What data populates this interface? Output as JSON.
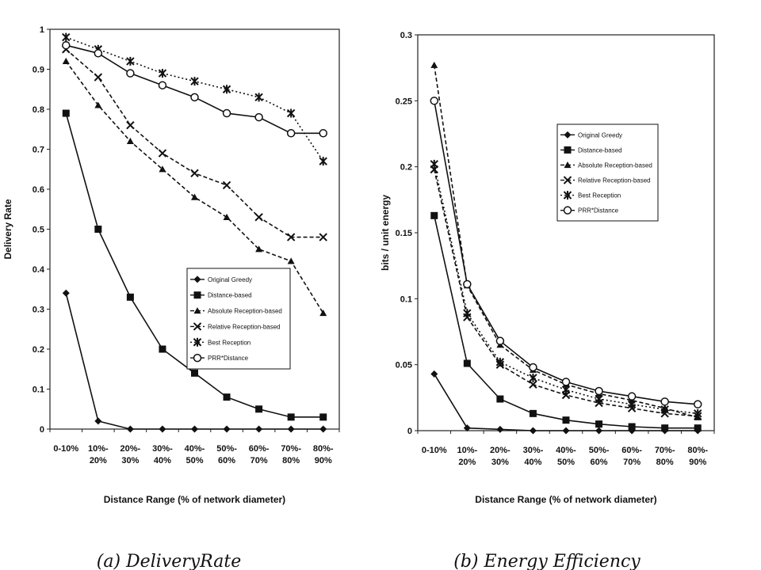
{
  "chart_data": [
    {
      "type": "line",
      "caption": "(a) DeliveryRate",
      "xlabel": "Distance Range (% of network diameter)",
      "ylabel": "Delivery Rate",
      "categories": [
        "0-10%",
        "10%-20%",
        "20%-30%",
        "30%-40%",
        "40%-50%",
        "50%-60%",
        "60%-70%",
        "70%-80%",
        "80%-90%"
      ],
      "ylim": [
        0,
        1
      ],
      "yticks": [
        "0",
        "0.1",
        "0.2",
        "0.3",
        "0.4",
        "0.5",
        "0.6",
        "0.7",
        "0.8",
        "0.9",
        "1"
      ],
      "legend_position": "lower-right",
      "series": [
        {
          "name": "Original Greedy",
          "marker": "diamond",
          "dash": "solid",
          "values": [
            0.34,
            0.02,
            0.0,
            0.0,
            0.0,
            0.0,
            0.0,
            0.0,
            0.0
          ]
        },
        {
          "name": "Distance-based",
          "marker": "square",
          "dash": "solid",
          "values": [
            0.79,
            0.5,
            0.33,
            0.2,
            0.14,
            0.08,
            0.05,
            0.03,
            0.03
          ]
        },
        {
          "name": "Absolute Reception-based",
          "marker": "triangle",
          "dash": "dashed",
          "values": [
            0.92,
            0.81,
            0.72,
            0.65,
            0.58,
            0.53,
            0.45,
            0.42,
            0.29
          ]
        },
        {
          "name": "Relative Reception-based",
          "marker": "x",
          "dash": "dashed",
          "values": [
            0.95,
            0.88,
            0.76,
            0.69,
            0.64,
            0.61,
            0.53,
            0.48,
            0.48
          ]
        },
        {
          "name": "Best Reception",
          "marker": "star",
          "dash": "dotted",
          "values": [
            0.98,
            0.95,
            0.92,
            0.89,
            0.87,
            0.85,
            0.83,
            0.79,
            0.67
          ]
        },
        {
          "name": "PRR*Distance",
          "marker": "circle",
          "dash": "solid",
          "values": [
            0.96,
            0.94,
            0.89,
            0.86,
            0.83,
            0.79,
            0.78,
            0.74,
            0.74
          ]
        }
      ]
    },
    {
      "type": "line",
      "caption": "(b) Energy Efficiency",
      "xlabel": "Distance Range (% of network diameter)",
      "ylabel": "bits / unit energy",
      "categories": [
        "0-10%",
        "10%-20%",
        "20%-30%",
        "30%-40%",
        "40%-50%",
        "50%-60%",
        "60%-70%",
        "70%-80%",
        "80%-90%"
      ],
      "ylim": [
        0,
        0.3
      ],
      "yticks": [
        "0",
        "0.05",
        "0.1",
        "0.15",
        "0.2",
        "0.25",
        "0.3"
      ],
      "legend_position": "upper-right",
      "series": [
        {
          "name": "Original Greedy",
          "marker": "diamond",
          "dash": "solid",
          "values": [
            0.043,
            0.002,
            0.001,
            0.0,
            0.0,
            0.0,
            0.0,
            0.0,
            0.0
          ]
        },
        {
          "name": "Distance-based",
          "marker": "square",
          "dash": "solid",
          "values": [
            0.163,
            0.051,
            0.024,
            0.013,
            0.008,
            0.005,
            0.003,
            0.002,
            0.002
          ]
        },
        {
          "name": "Absolute Reception-based",
          "marker": "triangle",
          "dash": "dashed",
          "values": [
            0.277,
            0.11,
            0.065,
            0.046,
            0.035,
            0.028,
            0.023,
            0.017,
            0.01
          ]
        },
        {
          "name": "Relative Reception-based",
          "marker": "x",
          "dash": "dashed",
          "values": [
            0.198,
            0.086,
            0.05,
            0.035,
            0.027,
            0.021,
            0.017,
            0.013,
            0.011
          ]
        },
        {
          "name": "Best Reception",
          "marker": "star",
          "dash": "dotted",
          "values": [
            0.202,
            0.089,
            0.052,
            0.04,
            0.031,
            0.024,
            0.02,
            0.016,
            0.013
          ]
        },
        {
          "name": "PRR*Distance",
          "marker": "circle",
          "dash": "solid",
          "values": [
            0.25,
            0.111,
            0.068,
            0.048,
            0.037,
            0.03,
            0.026,
            0.022,
            0.02
          ]
        }
      ]
    }
  ]
}
